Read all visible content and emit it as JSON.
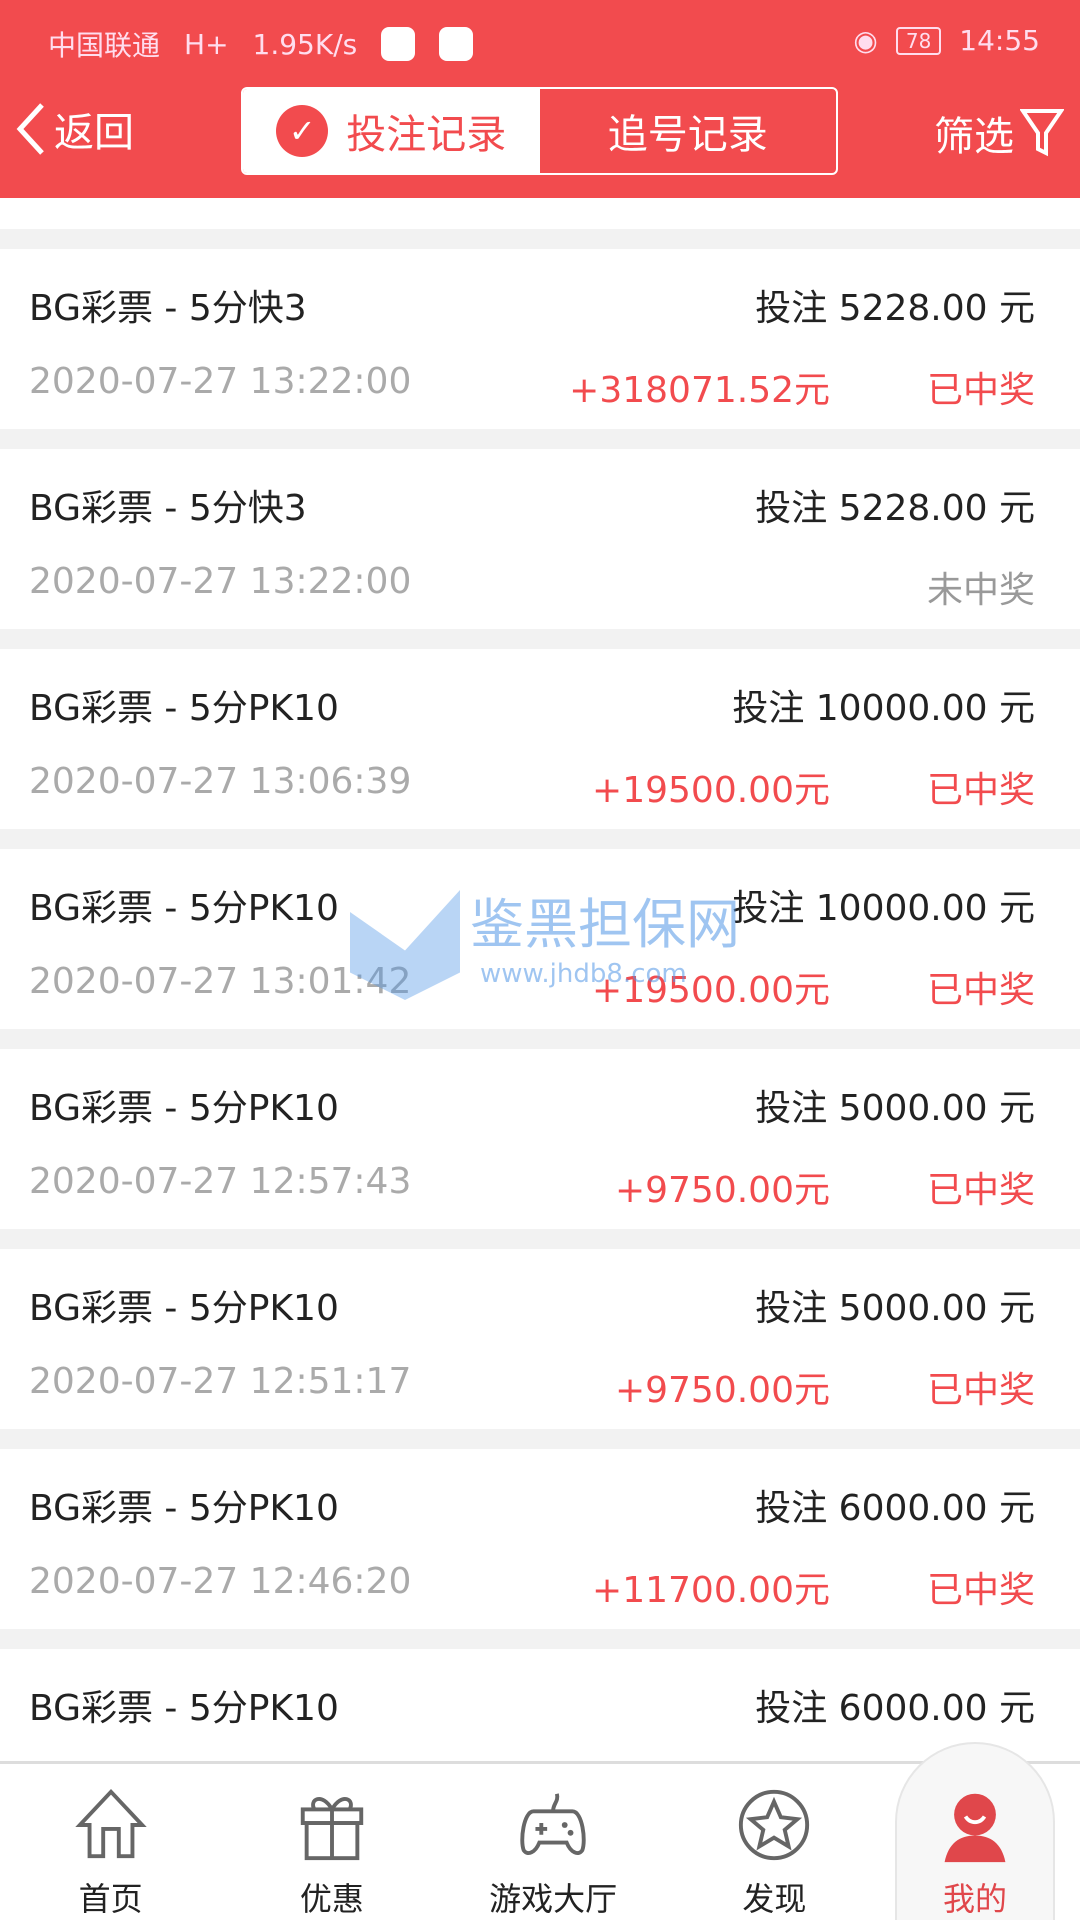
{
  "status_bar": {
    "carrier": "中国联通",
    "network": "H+",
    "speed": "1.95K/s",
    "battery": "78",
    "time": "14:55"
  },
  "header": {
    "back_label": "返回",
    "tabs": [
      {
        "label": "投注记录",
        "active": true
      },
      {
        "label": "追号记录",
        "active": false
      }
    ],
    "filter_label": "筛选"
  },
  "colors": {
    "accent": "#f24b4e",
    "won": "#f24b4e",
    "lost": "#999999"
  },
  "records": [
    {
      "title": "BG彩票 - 5分快3",
      "stake": "投注 5228.00 元",
      "time": "2020-07-27 13:22:00",
      "winnings": "+318071.52元",
      "status": "已中奖",
      "won": true
    },
    {
      "title": "BG彩票 - 5分快3",
      "stake": "投注 5228.00 元",
      "time": "2020-07-27 13:22:00",
      "winnings": "",
      "status": "未中奖",
      "won": false
    },
    {
      "title": "BG彩票 - 5分PK10",
      "stake": "投注 10000.00 元",
      "time": "2020-07-27 13:06:39",
      "winnings": "+19500.00元",
      "status": "已中奖",
      "won": true
    },
    {
      "title": "BG彩票 - 5分PK10",
      "stake": "投注 10000.00 元",
      "time": "2020-07-27 13:01:42",
      "winnings": "+19500.00元",
      "status": "已中奖",
      "won": true
    },
    {
      "title": "BG彩票 - 5分PK10",
      "stake": "投注 5000.00 元",
      "time": "2020-07-27 12:57:43",
      "winnings": "+9750.00元",
      "status": "已中奖",
      "won": true
    },
    {
      "title": "BG彩票 - 5分PK10",
      "stake": "投注 5000.00 元",
      "time": "2020-07-27 12:51:17",
      "winnings": "+9750.00元",
      "status": "已中奖",
      "won": true
    },
    {
      "title": "BG彩票 - 5分PK10",
      "stake": "投注 6000.00 元",
      "time": "2020-07-27 12:46:20",
      "winnings": "+11700.00元",
      "status": "已中奖",
      "won": true
    },
    {
      "title": "BG彩票 - 5分PK10",
      "stake": "投注 6000.00 元",
      "time": "",
      "winnings": "",
      "status": "",
      "won": null
    }
  ],
  "watermark": {
    "name": "鉴黑担保网",
    "url": "www.jhdb8.com"
  },
  "nav": [
    {
      "label": "首页",
      "icon": "home-icon"
    },
    {
      "label": "优惠",
      "icon": "gift-icon"
    },
    {
      "label": "游戏大厅",
      "icon": "gamepad-icon"
    },
    {
      "label": "发现",
      "icon": "star-icon"
    },
    {
      "label": "我的",
      "icon": "user-icon",
      "active": true
    }
  ]
}
